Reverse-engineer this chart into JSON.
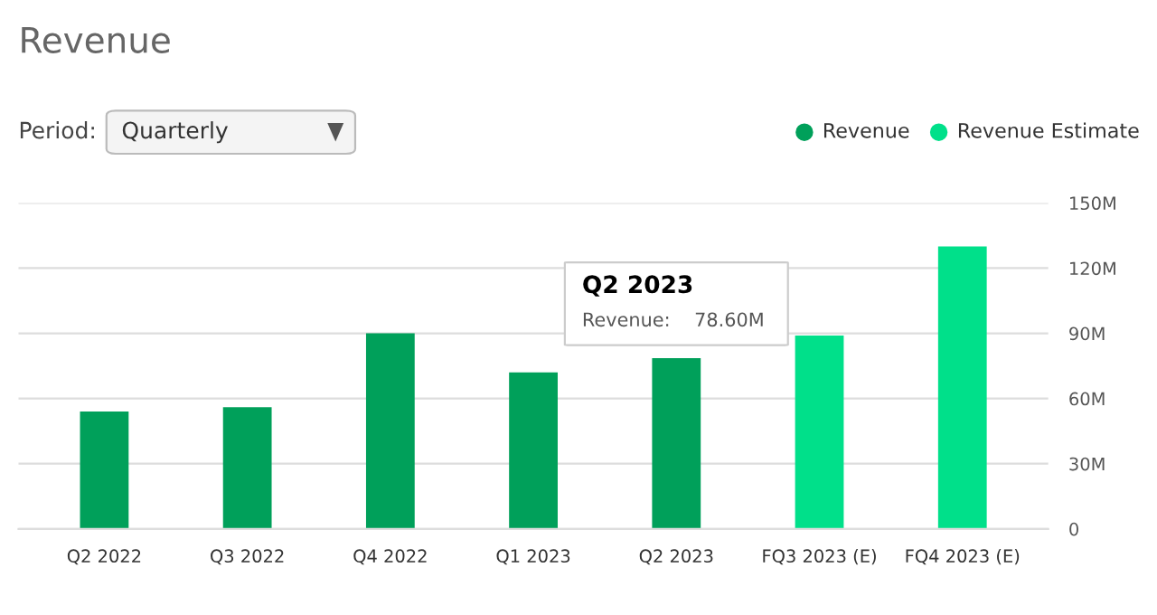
{
  "chart_data": {
    "type": "bar",
    "title": "Revenue",
    "categories": [
      "Q2 2022",
      "Q3 2022",
      "Q4 2022",
      "Q1 2023",
      "Q2 2023",
      "FQ3 2023 (E)",
      "FQ4 2023 (E)"
    ],
    "series": [
      {
        "name": "Revenue",
        "color": "#00a05a",
        "values": [
          54,
          56,
          90,
          72,
          78.6,
          null,
          null
        ]
      },
      {
        "name": "Revenue Estimate",
        "color": "#00e08a",
        "values": [
          null,
          null,
          null,
          null,
          null,
          89,
          130
        ]
      }
    ],
    "ylim": [
      0,
      150
    ],
    "yticks": [
      {
        "value": 0,
        "label": "0"
      },
      {
        "value": 30,
        "label": "30M"
      },
      {
        "value": 60,
        "label": "60M"
      },
      {
        "value": 90,
        "label": "90M"
      },
      {
        "value": 120,
        "label": "120M"
      },
      {
        "value": 150,
        "label": "150M"
      }
    ],
    "grid": "y",
    "legend": "top right",
    "annotations": [
      "Period:",
      "Quarterly",
      {
        "text": "Q2 2023",
        "x": "Q2 2023",
        "y": 78.6
      },
      {
        "text": "Revenue:    78.60M",
        "x": "Q2 2023",
        "y": 78.6
      }
    ]
  }
}
